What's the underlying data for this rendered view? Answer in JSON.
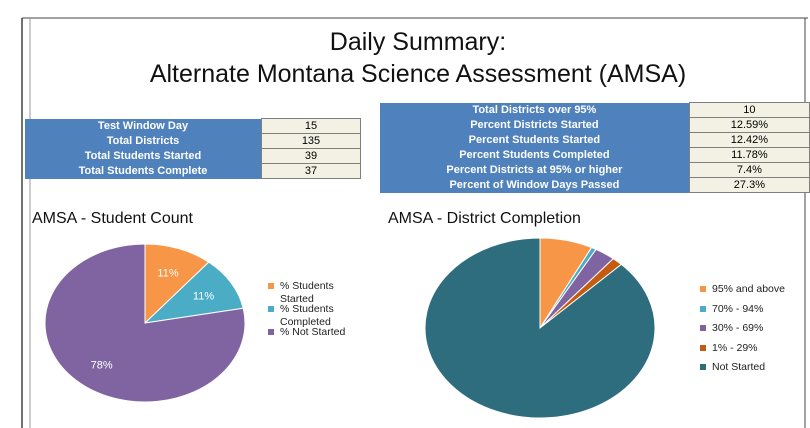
{
  "title": [
    "Daily Summary:",
    "Alternate Montana Science Assessment (AMSA)"
  ],
  "left_table": {
    "rows": [
      [
        "Test Window Day",
        "15"
      ],
      [
        "Total Districts",
        "135"
      ],
      [
        "Total Students Started",
        "39"
      ],
      [
        "Total Students Complete",
        "37"
      ]
    ]
  },
  "right_table": {
    "rows": [
      [
        "Total Districts over 95%",
        "10"
      ],
      [
        "Percent Districts Started",
        "12.59%"
      ],
      [
        "Percent Students Started",
        "12.42%"
      ],
      [
        "Percent Students Completed",
        "11.78%"
      ],
      [
        "Percent Districts at 95% or higher",
        "7.4%"
      ],
      [
        "Percent of Window Days Passed",
        "27.3%"
      ]
    ]
  },
  "chart_data": [
    {
      "type": "pie",
      "title": "AMSA - Student Count",
      "categories": [
        "% Students Started",
        "% Students Completed",
        "% Not Started"
      ],
      "values": [
        11,
        11,
        78
      ],
      "value_labels": [
        "11%",
        "11%",
        "78%"
      ],
      "colors": [
        "#f79646",
        "#4bacc6",
        "#8064a2"
      ]
    },
    {
      "type": "pie",
      "title": "AMSA - District Completion",
      "categories": [
        "95% and above",
        "70% - 94%",
        "30% - 69%",
        "1% - 29%",
        "Not Started"
      ],
      "values": [
        7.4,
        0.7,
        2.9,
        1.5,
        87.5
      ],
      "colors": [
        "#f79646",
        "#4bacc6",
        "#8064a2",
        "#c55a11",
        "#2e6d7e"
      ]
    }
  ]
}
